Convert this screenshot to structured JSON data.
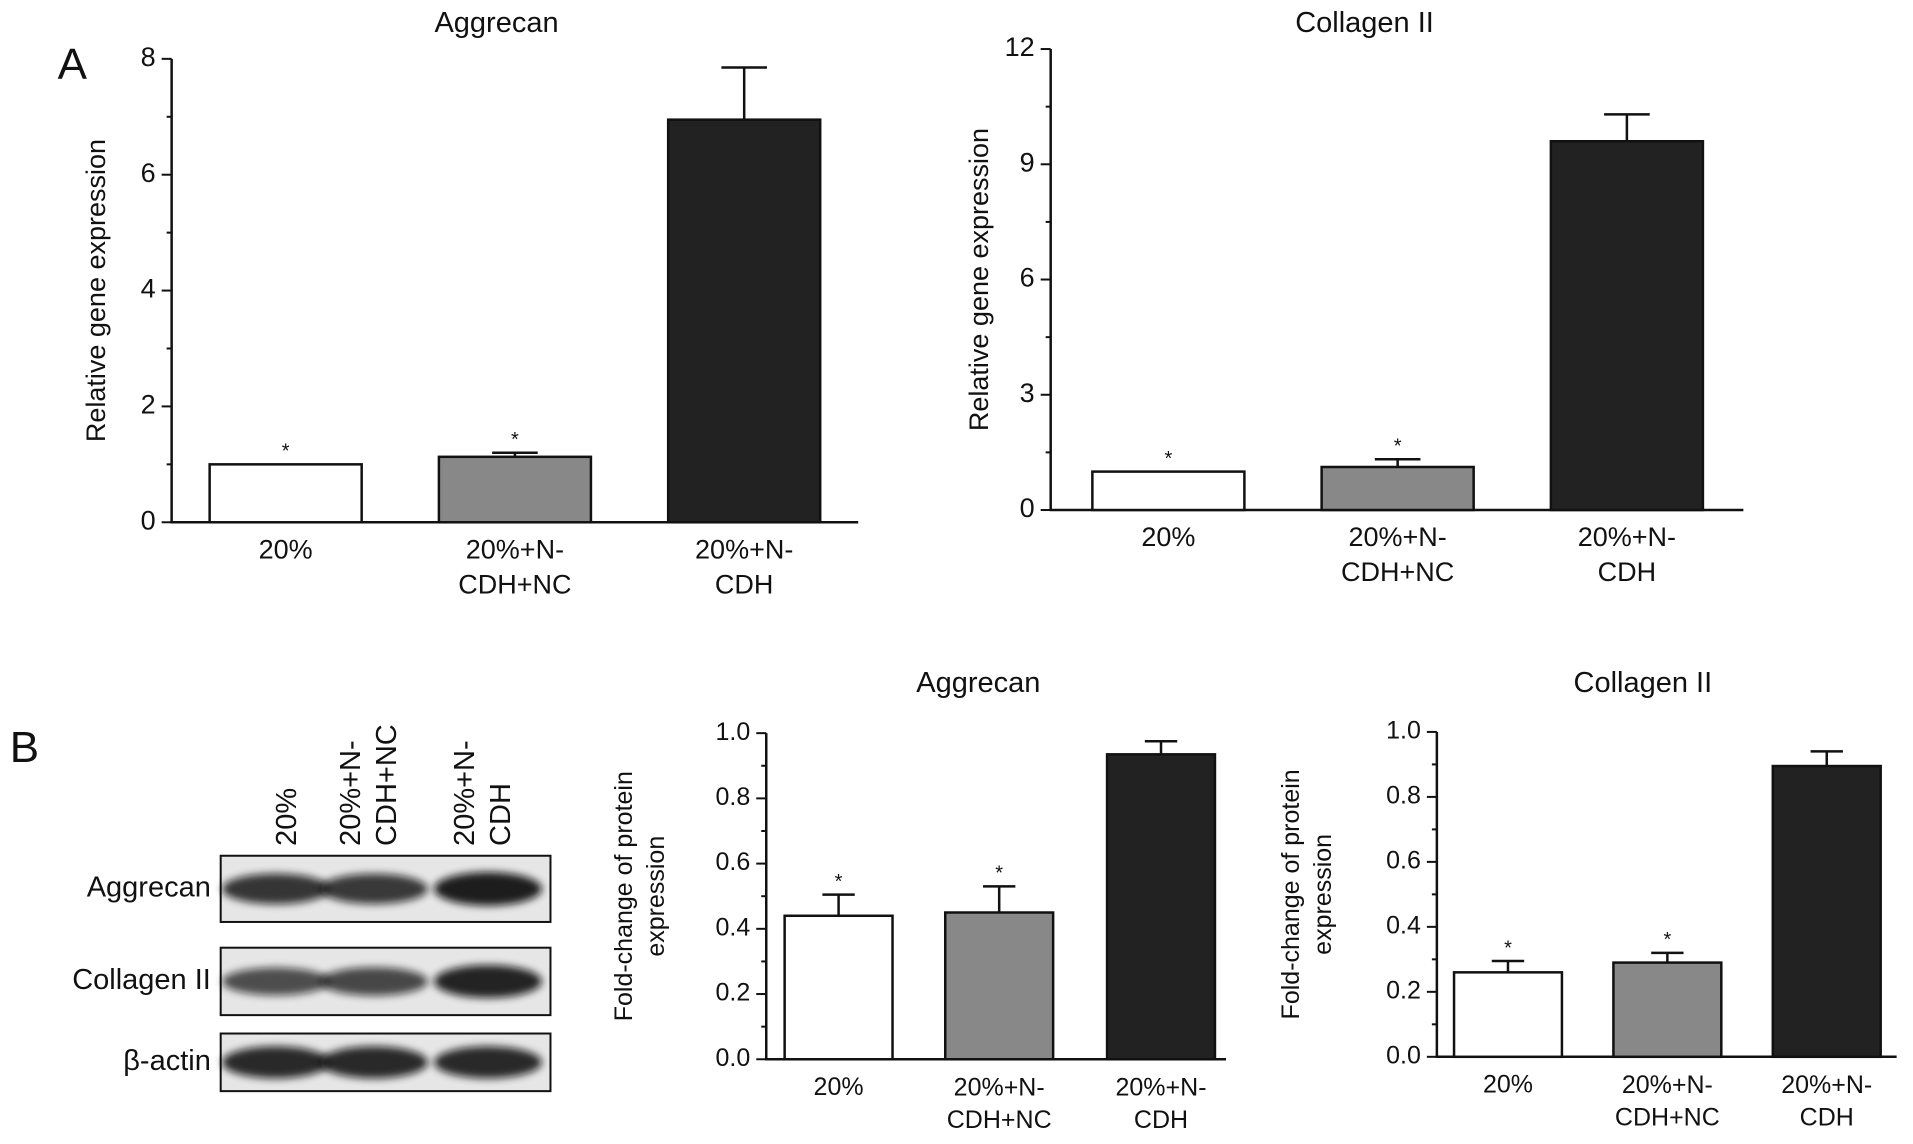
{
  "panels": [
    "A",
    "B"
  ],
  "blot": {
    "lanes": [
      "20%",
      "20%+N-CDH+NC",
      "20%+N-CDH"
    ],
    "rows": [
      "Aggrecan",
      "Collagen II",
      "β-actin"
    ]
  },
  "chart_data": [
    {
      "type": "bar",
      "title": "Aggrecan",
      "ylabel": "Relative gene expression",
      "categories": [
        "20%",
        "20%+N-CDH+NC",
        "20%+N-CDH"
      ],
      "values": [
        1.0,
        1.13,
        6.95
      ],
      "errors": [
        0,
        0.07,
        0.9
      ],
      "annotations": [
        "*",
        "*",
        null
      ],
      "colors": [
        "#ffffff",
        "#888888",
        "#222222"
      ],
      "ylim": [
        0,
        8
      ],
      "yticks": [
        0,
        2,
        4,
        6,
        8
      ],
      "grid": false
    },
    {
      "type": "bar",
      "title": "Collagen II",
      "ylabel": "Relative gene expression",
      "categories": [
        "20%",
        "20%+N-CDH+NC",
        "20%+N-CDH"
      ],
      "values": [
        1.0,
        1.12,
        9.6
      ],
      "errors": [
        0,
        0.2,
        0.7
      ],
      "annotations": [
        "*",
        "*",
        null
      ],
      "colors": [
        "#ffffff",
        "#888888",
        "#222222"
      ],
      "ylim": [
        0,
        12
      ],
      "yticks": [
        0,
        3,
        6,
        9,
        12
      ],
      "grid": false
    },
    {
      "type": "bar",
      "title": "Aggrecan",
      "ylabel": "Fold-change of protein expression",
      "categories": [
        "20%",
        "20%+N-CDH+NC",
        "20%+N-CDH"
      ],
      "values": [
        0.44,
        0.45,
        0.935
      ],
      "errors": [
        0.065,
        0.08,
        0.04
      ],
      "annotations": [
        "*",
        "*",
        null
      ],
      "colors": [
        "#ffffff",
        "#888888",
        "#222222"
      ],
      "ylim": [
        0,
        1
      ],
      "yticks": [
        {
          "value": 0,
          "label": "0.0"
        },
        0.2,
        0.4,
        0.6,
        0.8,
        {
          "value": 1,
          "label": "1.0"
        }
      ],
      "grid": false
    },
    {
      "type": "bar",
      "title": "Collagen II",
      "ylabel": "Fold-change of protein expression",
      "categories": [
        "20%",
        "20%+N-CDH+NC",
        "20%+N-CDH"
      ],
      "values": [
        0.26,
        0.29,
        0.895
      ],
      "errors": [
        0.035,
        0.03,
        0.045
      ],
      "annotations": [
        "*",
        "*",
        null
      ],
      "colors": [
        "#ffffff",
        "#888888",
        "#222222"
      ],
      "ylim": [
        0,
        1
      ],
      "yticks": [
        {
          "value": 0,
          "label": "0.0"
        },
        0.2,
        0.4,
        0.6,
        0.8,
        {
          "value": 1,
          "label": "1.0"
        }
      ],
      "grid": false
    }
  ]
}
